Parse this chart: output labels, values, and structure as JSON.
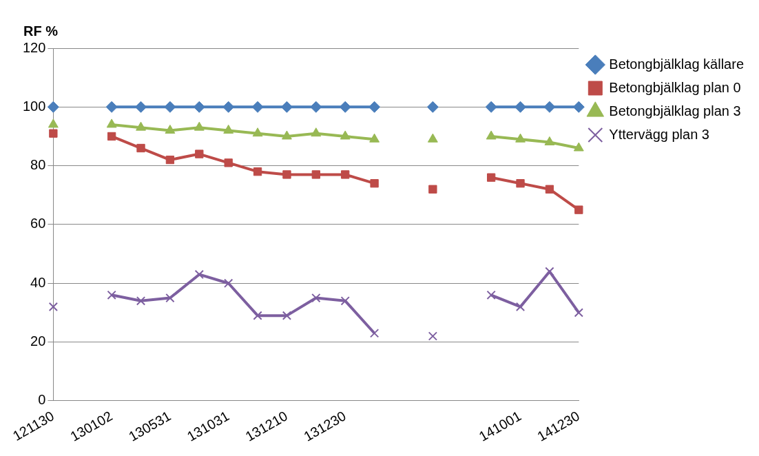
{
  "chart_data": {
    "type": "line",
    "ylabel": "RF %",
    "categories": [
      "121130",
      null,
      "130102",
      null,
      "130531",
      null,
      "131031",
      null,
      "131210",
      null,
      "131230",
      null,
      null,
      null,
      null,
      null,
      "141001",
      null,
      "141230"
    ],
    "ylim": [
      0,
      120
    ],
    "yticks": [
      0,
      20,
      40,
      60,
      80,
      100,
      120
    ],
    "grid": "y",
    "legend": "right",
    "series": [
      {
        "name": "Betongbjälklag källare",
        "color": "#4a7ebb",
        "marker": "diamond",
        "values": [
          100,
          null,
          100,
          100,
          100,
          100,
          100,
          100,
          100,
          100,
          100,
          100,
          null,
          100,
          null,
          100,
          100,
          100,
          100
        ]
      },
      {
        "name": "Betongbjälklag plan 0",
        "color": "#be4b48",
        "marker": "square",
        "values": [
          91,
          null,
          90,
          86,
          82,
          84,
          81,
          78,
          77,
          77,
          77,
          74,
          null,
          72,
          null,
          76,
          74,
          72,
          65
        ]
      },
      {
        "name": "Betongbjälklag plan 3",
        "color": "#98b954",
        "marker": "triangle",
        "values": [
          94,
          null,
          94,
          93,
          92,
          93,
          92,
          91,
          90,
          91,
          90,
          89,
          null,
          89,
          null,
          90,
          89,
          88,
          86
        ]
      },
      {
        "name": "Yttervägg plan 3",
        "color": "#7d5fa0",
        "marker": "cross",
        "values": [
          32,
          null,
          36,
          34,
          35,
          43,
          40,
          29,
          29,
          35,
          34,
          23,
          null,
          22,
          null,
          36,
          32,
          44,
          30
        ]
      }
    ]
  }
}
